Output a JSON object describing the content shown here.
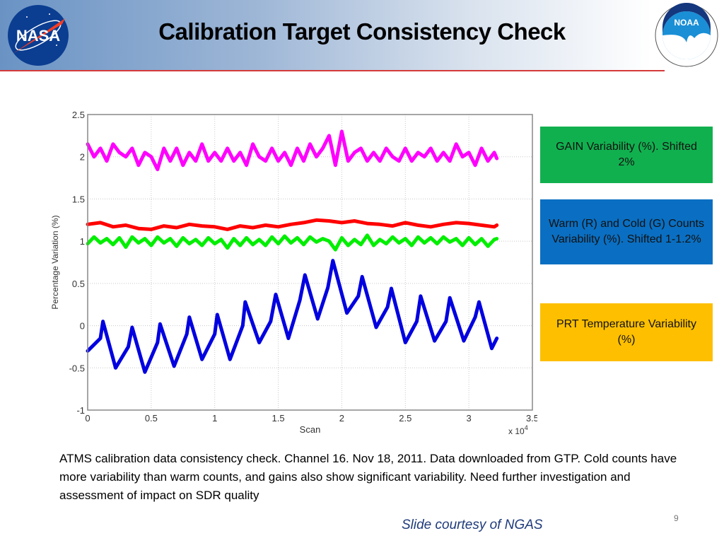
{
  "slide": {
    "title": "Calibration Target Consistency Check",
    "logos": [
      "nasa-logo",
      "noaa-logo"
    ],
    "nasa_text": "NASA",
    "noaa_text": "NOAA",
    "page_number": "9",
    "caption": "ATMS calibration data consistency check. Channel 16. Nov 18, 2011. Data downloaded from GTP. Cold counts have more variability than warm counts, and gains also show significant variability. Need further investigation and assessment of impact on SDR quality",
    "credit": "Slide courtesy of NGAS"
  },
  "legend_boxes": [
    {
      "text": "GAIN Variability (%). Shifted 2%",
      "color": "#11b04f"
    },
    {
      "text": "Warm (R) and Cold (G) Counts Variability (%). Shifted 1-1.2%",
      "color": "#0a6fc2"
    },
    {
      "text": "PRT Temperature Variability (%)",
      "color": "#fdbf00"
    }
  ],
  "chart_data": {
    "type": "line",
    "title": "",
    "xlabel": "Scan",
    "ylabel": "Percentage Variation (%)",
    "x_multiplier": "x 10^4",
    "xlim": [
      0,
      3.5
    ],
    "ylim": [
      -1,
      2.5
    ],
    "xticks": [
      "0",
      "0.5",
      "1",
      "1.5",
      "2",
      "2.5",
      "3",
      "3.5"
    ],
    "yticks": [
      "-1",
      "-0.5",
      "0",
      "0.5",
      "1",
      "1.5",
      "2",
      "2.5"
    ],
    "grid": true,
    "series": [
      {
        "name": "GAIN Variability (shifted 2%)",
        "color": "#ff00ff",
        "x": [
          0,
          0.05,
          0.1,
          0.15,
          0.2,
          0.25,
          0.3,
          0.35,
          0.4,
          0.45,
          0.5,
          0.55,
          0.6,
          0.65,
          0.7,
          0.75,
          0.8,
          0.85,
          0.9,
          0.95,
          1.0,
          1.05,
          1.1,
          1.15,
          1.2,
          1.25,
          1.3,
          1.35,
          1.4,
          1.45,
          1.5,
          1.55,
          1.6,
          1.65,
          1.7,
          1.75,
          1.8,
          1.85,
          1.9,
          1.95,
          2.0,
          2.05,
          2.1,
          2.15,
          2.2,
          2.25,
          2.3,
          2.35,
          2.4,
          2.45,
          2.5,
          2.55,
          2.6,
          2.65,
          2.7,
          2.75,
          2.8,
          2.85,
          2.9,
          2.95,
          3.0,
          3.05,
          3.1,
          3.15,
          3.2,
          3.22
        ],
        "values": [
          2.15,
          2.0,
          2.1,
          1.95,
          2.15,
          2.05,
          2.0,
          2.1,
          1.9,
          2.05,
          2.0,
          1.85,
          2.1,
          1.95,
          2.1,
          1.9,
          2.05,
          1.95,
          2.15,
          1.95,
          2.05,
          1.95,
          2.1,
          1.95,
          2.05,
          1.9,
          2.15,
          2.0,
          1.95,
          2.1,
          1.95,
          2.05,
          1.9,
          2.1,
          1.95,
          2.15,
          2.0,
          2.1,
          2.25,
          1.9,
          2.3,
          1.95,
          2.05,
          2.1,
          1.95,
          2.05,
          1.95,
          2.1,
          2.0,
          1.95,
          2.1,
          1.95,
          2.05,
          2.0,
          2.1,
          1.95,
          2.05,
          1.95,
          2.15,
          2.0,
          2.05,
          1.9,
          2.1,
          1.95,
          2.05,
          1.98
        ]
      },
      {
        "name": "Warm Counts Variability (R, shifted 1.2%)",
        "color": "#ff0000",
        "x": [
          0,
          0.1,
          0.2,
          0.3,
          0.4,
          0.5,
          0.6,
          0.7,
          0.8,
          0.9,
          1.0,
          1.1,
          1.2,
          1.3,
          1.4,
          1.5,
          1.6,
          1.7,
          1.8,
          1.9,
          2.0,
          2.1,
          2.2,
          2.3,
          2.4,
          2.5,
          2.6,
          2.7,
          2.8,
          2.9,
          3.0,
          3.1,
          3.2,
          3.22
        ],
        "values": [
          1.2,
          1.22,
          1.17,
          1.19,
          1.15,
          1.14,
          1.18,
          1.16,
          1.2,
          1.18,
          1.17,
          1.14,
          1.18,
          1.16,
          1.19,
          1.17,
          1.2,
          1.22,
          1.25,
          1.24,
          1.22,
          1.24,
          1.21,
          1.2,
          1.18,
          1.22,
          1.19,
          1.17,
          1.2,
          1.22,
          1.21,
          1.19,
          1.17,
          1.19
        ]
      },
      {
        "name": "Cold Counts Variability (G, shifted 1%)",
        "color": "#00ee00",
        "x": [
          0,
          0.05,
          0.1,
          0.15,
          0.2,
          0.25,
          0.3,
          0.35,
          0.4,
          0.45,
          0.5,
          0.55,
          0.6,
          0.65,
          0.7,
          0.75,
          0.8,
          0.85,
          0.9,
          0.95,
          1.0,
          1.05,
          1.1,
          1.15,
          1.2,
          1.25,
          1.3,
          1.35,
          1.4,
          1.45,
          1.5,
          1.55,
          1.6,
          1.65,
          1.7,
          1.75,
          1.8,
          1.85,
          1.9,
          1.95,
          2.0,
          2.05,
          2.1,
          2.15,
          2.2,
          2.25,
          2.3,
          2.35,
          2.4,
          2.45,
          2.5,
          2.55,
          2.6,
          2.65,
          2.7,
          2.75,
          2.8,
          2.85,
          2.9,
          2.95,
          3.0,
          3.05,
          3.1,
          3.15,
          3.2,
          3.22
        ],
        "values": [
          0.97,
          1.05,
          0.98,
          1.03,
          0.96,
          1.04,
          0.93,
          1.05,
          0.98,
          1.03,
          0.95,
          1.05,
          0.98,
          1.03,
          0.94,
          1.04,
          0.97,
          1.02,
          0.95,
          1.04,
          0.97,
          1.02,
          0.92,
          1.03,
          0.95,
          1.04,
          0.96,
          1.02,
          0.95,
          1.05,
          0.97,
          1.06,
          0.98,
          1.04,
          0.96,
          1.05,
          0.99,
          1.03,
          1.0,
          0.9,
          1.04,
          0.95,
          1.02,
          0.96,
          1.07,
          0.95,
          1.02,
          0.97,
          1.05,
          0.98,
          1.03,
          0.95,
          1.05,
          0.98,
          1.04,
          0.97,
          1.05,
          0.99,
          1.03,
          0.95,
          1.04,
          0.96,
          1.03,
          0.94,
          1.02,
          1.03
        ]
      },
      {
        "name": "PRT Temperature Variability",
        "color": "#0000e0",
        "x": [
          0,
          0.1,
          0.12,
          0.22,
          0.32,
          0.35,
          0.45,
          0.55,
          0.57,
          0.68,
          0.78,
          0.8,
          0.9,
          1.0,
          1.02,
          1.12,
          1.22,
          1.24,
          1.35,
          1.44,
          1.48,
          1.58,
          1.67,
          1.71,
          1.81,
          1.89,
          1.93,
          2.04,
          2.13,
          2.16,
          2.27,
          2.36,
          2.39,
          2.5,
          2.59,
          2.62,
          2.73,
          2.82,
          2.85,
          2.96,
          3.05,
          3.08,
          3.18,
          3.22
        ],
        "values": [
          -0.3,
          -0.15,
          0.05,
          -0.5,
          -0.25,
          -0.02,
          -0.55,
          -0.2,
          0.02,
          -0.48,
          -0.1,
          0.1,
          -0.4,
          -0.1,
          0.13,
          -0.4,
          0.0,
          0.28,
          -0.2,
          0.05,
          0.37,
          -0.15,
          0.3,
          0.6,
          0.08,
          0.45,
          0.77,
          0.15,
          0.35,
          0.58,
          -0.02,
          0.22,
          0.44,
          -0.2,
          0.05,
          0.35,
          -0.18,
          0.05,
          0.33,
          -0.18,
          0.1,
          0.28,
          -0.27,
          -0.15
        ]
      }
    ]
  }
}
